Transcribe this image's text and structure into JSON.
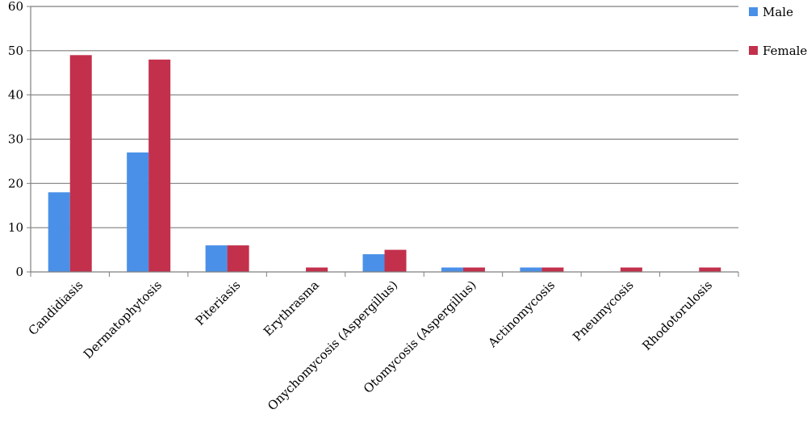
{
  "chart_data": {
    "type": "bar",
    "title": "",
    "xlabel": "",
    "ylabel": "",
    "ylim": [
      0,
      60
    ],
    "yticks": [
      0,
      10,
      20,
      30,
      40,
      50,
      60
    ],
    "grid": true,
    "legend_position": "right",
    "categories": [
      "Candidiasis",
      "Dermatophytosis",
      "Piteriasis",
      "Erythrasma",
      "Onychomycosis (Aspergillus)",
      "Otomycosis (Aspergillus)",
      "Actinomycosis",
      "Pneumycosis",
      "Rhodotorulosis"
    ],
    "series": [
      {
        "name": "Male",
        "color": "#4a90e8",
        "values": [
          18,
          27,
          6,
          0,
          4,
          1,
          1,
          0,
          0
        ]
      },
      {
        "name": "Female",
        "color": "#c3304c",
        "values": [
          49,
          48,
          6,
          1,
          5,
          1,
          1,
          1,
          1
        ]
      }
    ]
  }
}
